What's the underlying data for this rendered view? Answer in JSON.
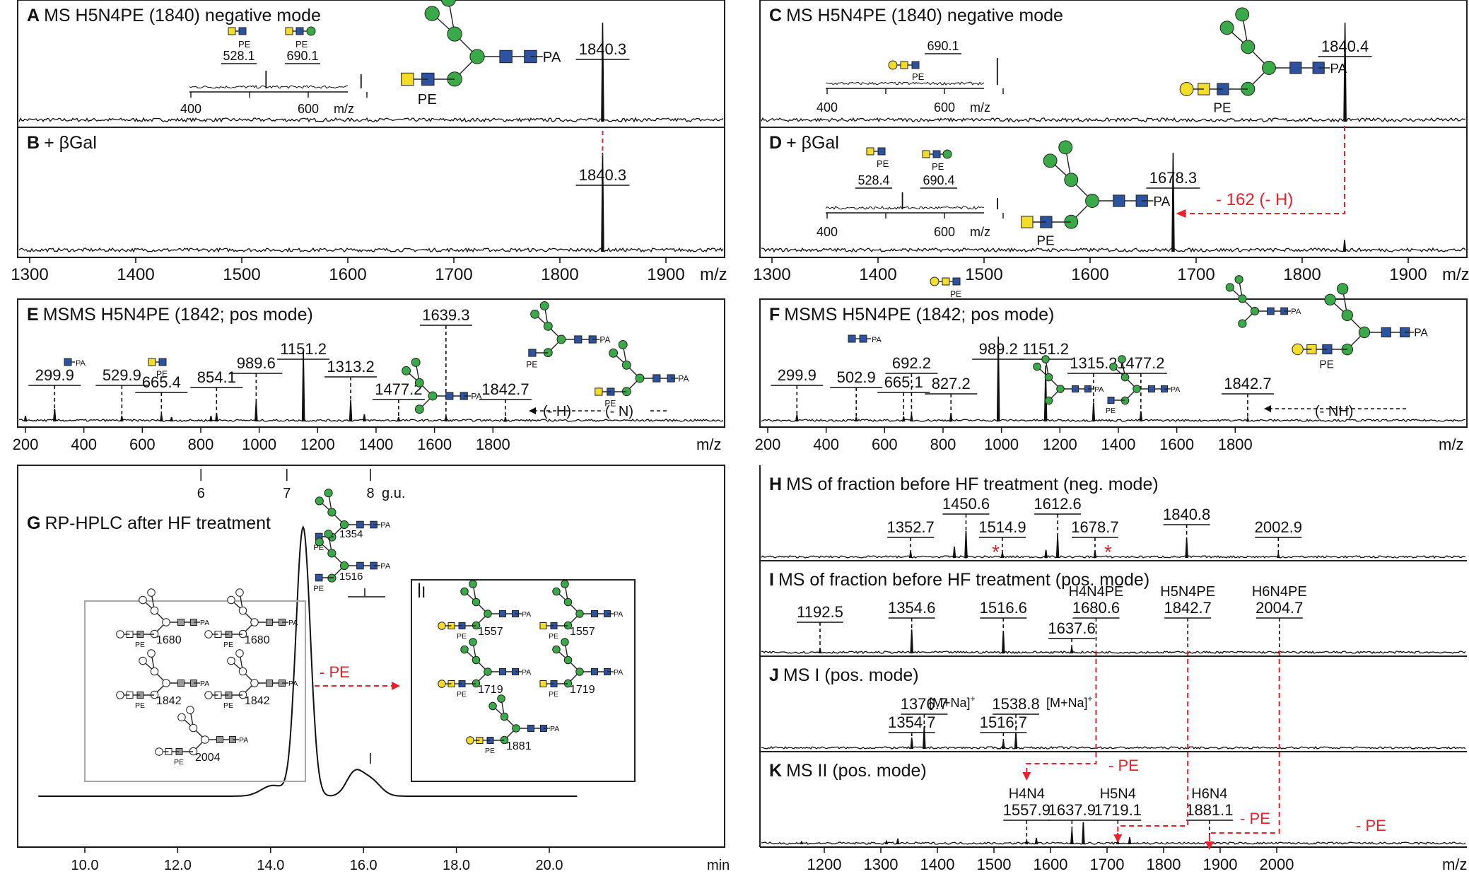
{
  "figure": {
    "colors": {
      "spectrum": "#111111",
      "annotation_red": "#e8212a",
      "glycan_green": "#3aaa48",
      "glycan_blue": "#2c52a0",
      "glycan_yellow": "#f4dc2a",
      "glycan_grey": "#9a9a9a",
      "inset_box_grey": "#a8a8a8"
    },
    "panels": {
      "A": {
        "letter": "A",
        "title": "MS H5N4PE (1840) negative mode"
      },
      "B": {
        "letter": "B",
        "title": "+ βGal"
      },
      "C": {
        "letter": "C",
        "title": "MS H5N4PE (1840) negative mode"
      },
      "D": {
        "letter": "D",
        "title": "+ βGal"
      },
      "E": {
        "letter": "E",
        "title": "MSMS H5N4PE (1842; pos mode)"
      },
      "F": {
        "letter": "F",
        "title": "MSMS H5N4PE (1842; pos mode)"
      },
      "G": {
        "letter": "G",
        "title": "RP-HPLC after HF treatment"
      },
      "H": {
        "letter": "H",
        "title": "MS of fraction before HF treatment (neg. mode)"
      },
      "I": {
        "letter": "I",
        "title": "MS of fraction before HF treatment (pos. mode)"
      },
      "J": {
        "letter": "J",
        "title": "MS I (pos. mode)"
      },
      "K": {
        "letter": "K",
        "title": "MS II (pos. mode)"
      }
    },
    "inset_axis": {
      "ticks": [
        "400",
        "600"
      ],
      "unit": "m/z"
    },
    "annotations": {
      "pa": "PA",
      "pe": "PE",
      "loss_162": "- 162 (- H)",
      "loss_h": "(- H)",
      "loss_n": "(- N)",
      "loss_nh": "(- NH)",
      "minus_pe": "- PE",
      "na_1376": "[M+Na]",
      "na_1538": "[M+Na]",
      "na_sup": "+",
      "box_I": "I",
      "box_II": "II",
      "star": "*"
    },
    "glycan_labels": {
      "box1": [
        "1680",
        "1680",
        "1842",
        "1842",
        "2004"
      ],
      "box2": [
        "1557",
        "1557",
        "1719",
        "1719",
        "1881"
      ],
      "peak": [
        "1354",
        "1516"
      ]
    },
    "peak_labels": {
      "A": {
        "main": "1840.3",
        "inset1": "528.1",
        "inset2": "690.1"
      },
      "B": {
        "main": "1840.3"
      },
      "C": {
        "main": "1840.4",
        "inset1": "690.1"
      },
      "D": {
        "main": "1678.3",
        "inset1": "528.4",
        "inset2": "690.4"
      },
      "E": [
        "299.9",
        "529.9",
        "665.4",
        "854.1",
        "989.6",
        "1151.2",
        "1313.2",
        "1477.2",
        "1639.3",
        "1842.7"
      ],
      "F": [
        "299.9",
        "502.9",
        "665.1",
        "692.2",
        "827.2",
        "989.2",
        "1151.2",
        "1315.2",
        "1477.2",
        "1842.7"
      ],
      "H": [
        "1352.7",
        "1450.6",
        "1514.9",
        "1612.6",
        "1678.7",
        "1840.8",
        "2002.9"
      ],
      "I": {
        "values": [
          "1192.5",
          "1354.6",
          "1516.6",
          "1637.6",
          "1680.6",
          "1842.7",
          "2004.7"
        ],
        "names": {
          "1680.6": "H4N4PE",
          "1842.7": "H5N4PE",
          "2004.7": "H6N4PE"
        }
      },
      "J": [
        "1354.7",
        "1376.7",
        "1516.7",
        "1538.8"
      ],
      "K": {
        "values": [
          "1557.9",
          "1637.9",
          "1719.1",
          "1881.1"
        ],
        "names": {
          "1557.9": "H4N4",
          "1719.1": "H5N4",
          "1881.1": "H6N4"
        }
      }
    }
  },
  "chart_data": [
    {
      "panel": "A",
      "type": "line",
      "title": "MS H5N4PE (1840) negative mode",
      "xlim": [
        1300,
        1950
      ],
      "x_unit": "m/z",
      "peaks": [
        {
          "x": 1840.3,
          "y": 100
        }
      ],
      "inset": {
        "xlim": [
          400,
          700
        ],
        "ticks": [
          400,
          600
        ],
        "peaks": [
          {
            "x": 528.1,
            "y": 45
          },
          {
            "x": 690.1,
            "y": 40
          }
        ]
      }
    },
    {
      "panel": "B",
      "type": "line",
      "title": "+ βGal",
      "xlim": [
        1300,
        1950
      ],
      "xlabel": "m/z",
      "xticks": [
        1300,
        1400,
        1500,
        1600,
        1700,
        1800,
        1900
      ],
      "peaks": [
        {
          "x": 1840.3,
          "y": 100
        }
      ]
    },
    {
      "panel": "C",
      "type": "line",
      "title": "MS H5N4PE (1840) negative mode",
      "xlim": [
        1300,
        1950
      ],
      "peaks": [
        {
          "x": 1840.4,
          "y": 100
        }
      ],
      "inset": {
        "xlim": [
          400,
          700
        ],
        "ticks": [
          400,
          600
        ],
        "peaks": [
          {
            "x": 690.1,
            "y": 80
          }
        ]
      }
    },
    {
      "panel": "D",
      "type": "line",
      "title": "+ βGal",
      "xlim": [
        1300,
        1950
      ],
      "xlabel": "m/z",
      "xticks": [
        1300,
        1400,
        1500,
        1600,
        1700,
        1800,
        1900
      ],
      "peaks": [
        {
          "x": 1678.3,
          "y": 100
        },
        {
          "x": 1840.0,
          "y": 12
        }
      ],
      "inset": {
        "xlim": [
          400,
          700
        ],
        "ticks": [
          400,
          600
        ],
        "peaks": [
          {
            "x": 528.4,
            "y": 60
          },
          {
            "x": 690.4,
            "y": 45
          }
        ]
      }
    },
    {
      "panel": "E",
      "type": "line",
      "title": "MSMS H5N4PE (1842; pos mode)",
      "xlim": [
        180,
        1950
      ],
      "xlabel": "m/z",
      "xticks": [
        200,
        400,
        600,
        800,
        1000,
        1200,
        1400,
        1600,
        1800
      ],
      "peaks": [
        {
          "x": 200,
          "y": 8
        },
        {
          "x": 299.9,
          "y": 18
        },
        {
          "x": 529.9,
          "y": 8
        },
        {
          "x": 665.4,
          "y": 10
        },
        {
          "x": 700,
          "y": 6
        },
        {
          "x": 835,
          "y": 8
        },
        {
          "x": 854.1,
          "y": 12
        },
        {
          "x": 989.6,
          "y": 28
        },
        {
          "x": 1151.2,
          "y": 100
        },
        {
          "x": 1313.2,
          "y": 30
        },
        {
          "x": 1360,
          "y": 10
        },
        {
          "x": 1477.2,
          "y": 6
        },
        {
          "x": 1639.3,
          "y": 8
        },
        {
          "x": 1842.7,
          "y": 6
        }
      ]
    },
    {
      "panel": "F",
      "type": "line",
      "title": "MSMS H5N4PE (1842; pos mode)",
      "xlim": [
        180,
        1950
      ],
      "xlabel": "m/z",
      "xticks": [
        200,
        400,
        600,
        800,
        1000,
        1200,
        1400,
        1600,
        1800
      ],
      "peaks": [
        {
          "x": 299.9,
          "y": 8
        },
        {
          "x": 502.9,
          "y": 5
        },
        {
          "x": 665.1,
          "y": 6
        },
        {
          "x": 692.2,
          "y": 8
        },
        {
          "x": 827.2,
          "y": 10
        },
        {
          "x": 989.2,
          "y": 100
        },
        {
          "x": 1151.2,
          "y": 62
        },
        {
          "x": 1315.2,
          "y": 22
        },
        {
          "x": 1477.2,
          "y": 12
        },
        {
          "x": 1842.7,
          "y": 4
        }
      ]
    },
    {
      "panel": "G",
      "type": "line",
      "title": "RP-HPLC after HF treatment",
      "xlim": [
        9.0,
        20.6
      ],
      "xlabel": "min",
      "xticks": [
        10.0,
        12.0,
        14.0,
        16.0,
        18.0,
        20.0
      ],
      "gu_axis": {
        "ticks": [
          6,
          7,
          8
        ],
        "label": "g.u.",
        "x_min": [
          12.5,
          14.35,
          16.15
        ]
      },
      "peaks": [
        {
          "x": 14.1,
          "y": 5
        },
        {
          "x": 14.7,
          "y": 100
        },
        {
          "x": 15.8,
          "y": 8
        },
        {
          "x": 16.15,
          "y": 6
        }
      ]
    },
    {
      "panel": "H",
      "type": "line",
      "title": "MS of fraction before HF treatment (neg. mode)",
      "xlim": [
        1100,
        2100
      ],
      "peaks": [
        {
          "x": 1352.7,
          "y": 20
        },
        {
          "x": 1430,
          "y": 35
        },
        {
          "x": 1450.6,
          "y": 85
        },
        {
          "x": 1514.9,
          "y": 18
        },
        {
          "x": 1592,
          "y": 25
        },
        {
          "x": 1612.6,
          "y": 70
        },
        {
          "x": 1678.7,
          "y": 22
        },
        {
          "x": 1840.8,
          "y": 60
        },
        {
          "x": 2002.9,
          "y": 12
        }
      ]
    },
    {
      "panel": "I",
      "type": "line",
      "title": "MS of fraction before HF treatment (pos. mode)",
      "xlim": [
        1100,
        2100
      ],
      "peaks": [
        {
          "x": 1192.5,
          "y": 15
        },
        {
          "x": 1354.6,
          "y": 75
        },
        {
          "x": 1516.6,
          "y": 70
        },
        {
          "x": 1637.6,
          "y": 20
        },
        {
          "x": 1680.6,
          "y": 5
        },
        {
          "x": 1842.7,
          "y": 3
        },
        {
          "x": 2004.7,
          "y": 2
        }
      ]
    },
    {
      "panel": "J",
      "type": "line",
      "title": "MS I (pos. mode)",
      "xlim": [
        1100,
        2100
      ],
      "peaks": [
        {
          "x": 1354.7,
          "y": 35
        },
        {
          "x": 1376.7,
          "y": 70
        },
        {
          "x": 1516.7,
          "y": 25
        },
        {
          "x": 1538.8,
          "y": 50
        }
      ]
    },
    {
      "panel": "K",
      "type": "line",
      "title": "MS II (pos. mode)",
      "xlim": [
        1100,
        2100
      ],
      "xlabel": "m/z",
      "xticks": [
        1200,
        1300,
        1400,
        1500,
        1600,
        1700,
        1800,
        1900,
        2000
      ],
      "peaks": [
        {
          "x": 1160,
          "y": 8
        },
        {
          "x": 1310,
          "y": 10
        },
        {
          "x": 1330,
          "y": 18
        },
        {
          "x": 1557.9,
          "y": 12
        },
        {
          "x": 1575,
          "y": 20
        },
        {
          "x": 1637.9,
          "y": 45
        },
        {
          "x": 1658,
          "y": 70
        },
        {
          "x": 1719.1,
          "y": 12
        },
        {
          "x": 1740,
          "y": 22
        },
        {
          "x": 1881.1,
          "y": 6
        }
      ]
    }
  ]
}
